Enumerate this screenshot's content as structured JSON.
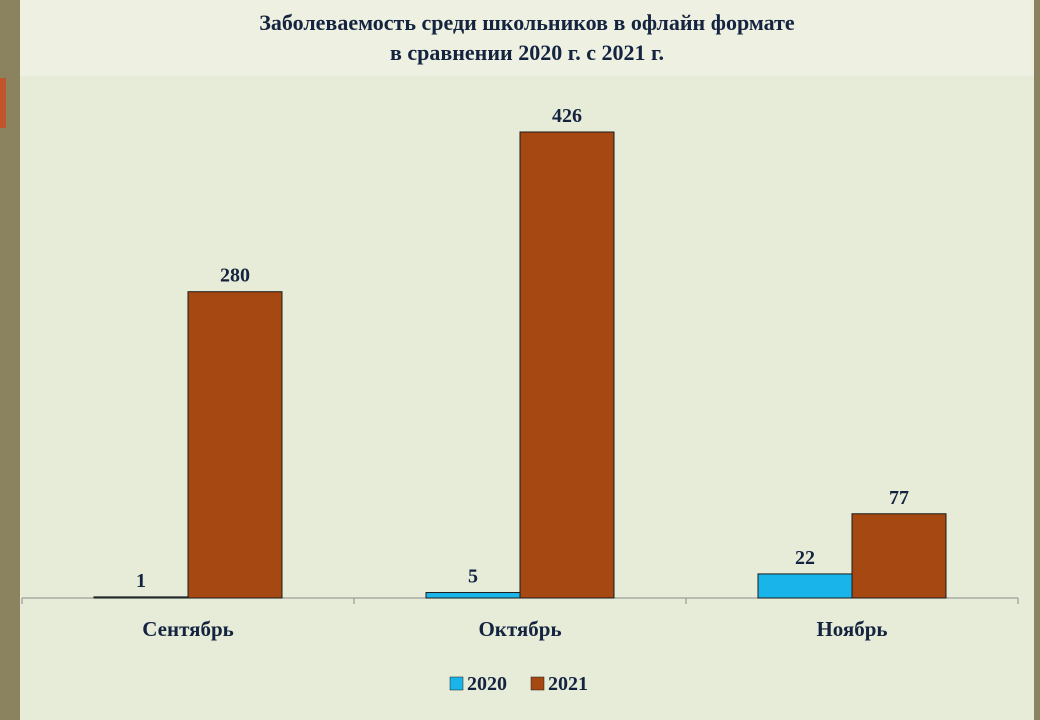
{
  "title_line1": "Заболеваемость среди школьников в офлайн формате",
  "title_line2": "в сравнении 2020 г. с 2021 г.",
  "chart_data": {
    "type": "bar",
    "title": "Заболеваемость среди школьников в офлайн формате в сравнении 2020 г. с 2021 г.",
    "categories": [
      "Сентябрь",
      "Октябрь",
      "Ноябрь"
    ],
    "series": [
      {
        "name": "2020",
        "values": [
          1,
          5,
          22
        ],
        "color": "#19b4ea"
      },
      {
        "name": "2021",
        "values": [
          280,
          426,
          77
        ],
        "color": "#a64812"
      }
    ],
    "legend": "bottom",
    "grid": false,
    "ylim": [
      0,
      426
    ]
  }
}
